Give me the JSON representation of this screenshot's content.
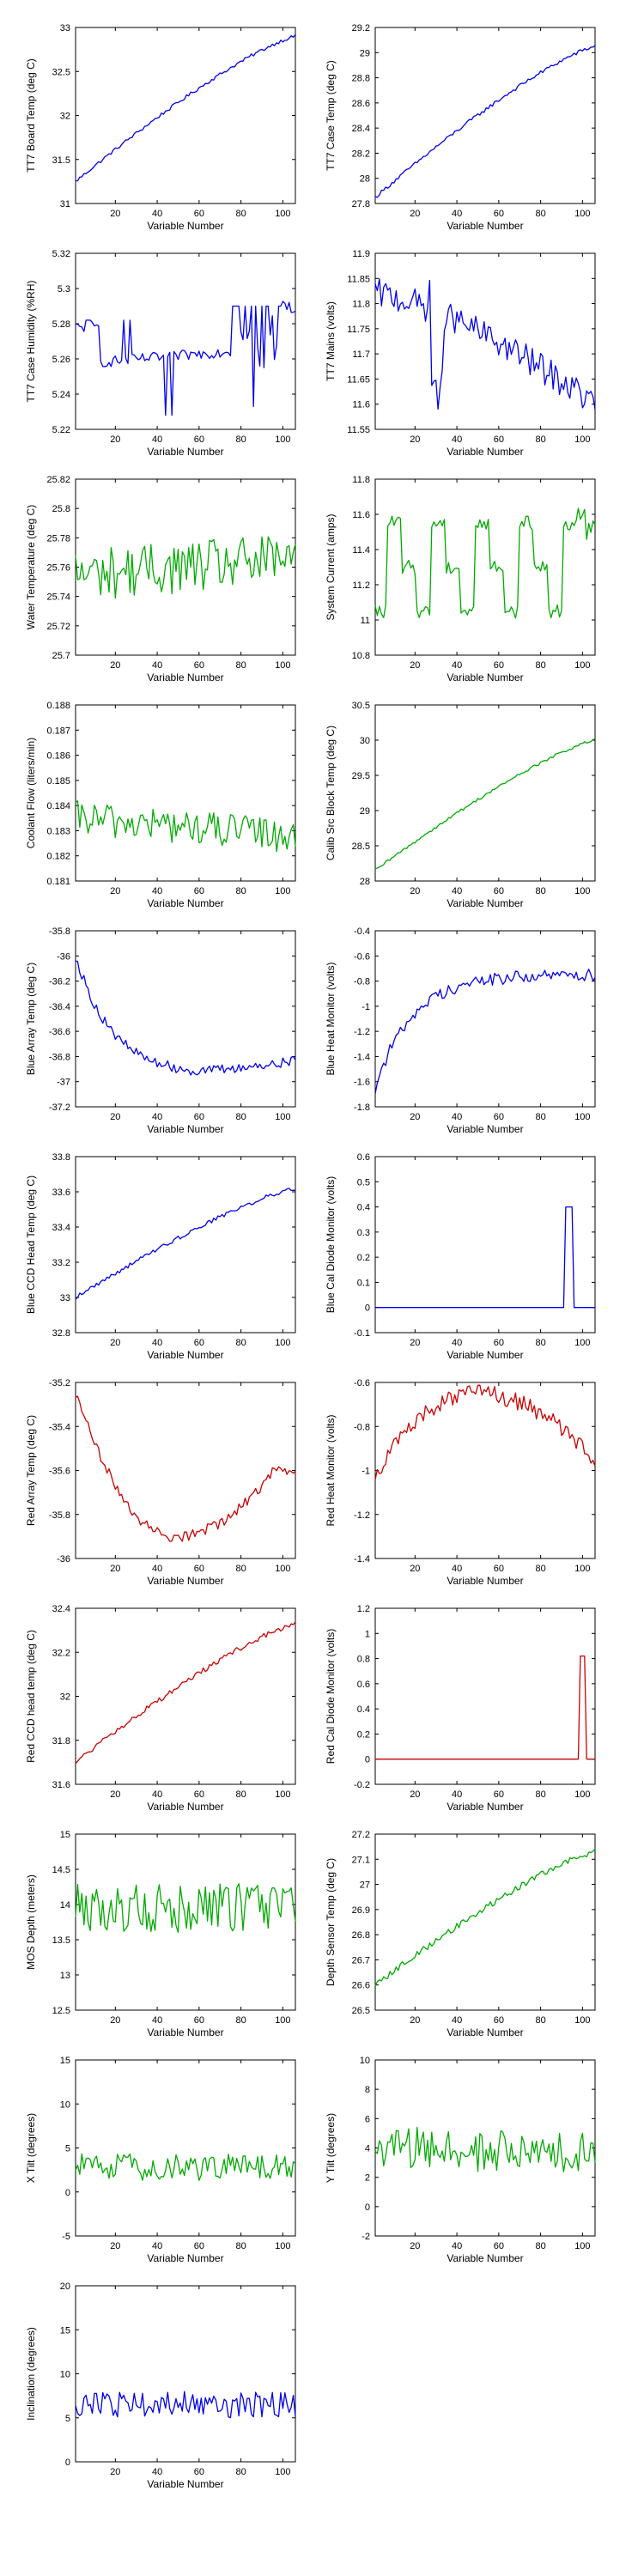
{
  "chart_data": [
    {
      "type": "line",
      "xlabel": "Variable Number",
      "ylabel": "TT7 Board Temp (deg C)",
      "color": "#0000ee",
      "ylim": [
        31,
        33
      ],
      "yticks": [
        "31",
        "31.5",
        "32",
        "32.5",
        "33"
      ],
      "xticks": [
        20,
        40,
        60,
        80,
        100
      ],
      "xlim": [
        1,
        106
      ],
      "shape": "ramp",
      "start": 31.25,
      "end": 32.9,
      "noise": 0.02
    },
    {
      "type": "line",
      "xlabel": "Variable Number",
      "ylabel": "TT7 Case Temp (deg C)",
      "color": "#0000ee",
      "ylim": [
        27.8,
        29.2
      ],
      "yticks": [
        "27.8",
        "28",
        "28.2",
        "28.4",
        "28.6",
        "28.8",
        "29",
        "29.2"
      ],
      "xticks": [
        20,
        40,
        60,
        80,
        100
      ],
      "xlim": [
        1,
        106
      ],
      "shape": "ramp",
      "start": 27.85,
      "end": 29.05,
      "noise": 0.015
    },
    {
      "type": "line",
      "xlabel": "Variable Number",
      "ylabel": "TT7 Case Humidity (%RH)",
      "color": "#0000ee",
      "ylim": [
        5.22,
        5.32
      ],
      "yticks": [
        "5.22",
        "5.24",
        "5.26",
        "5.28",
        "5.3",
        "5.32"
      ],
      "xticks": [
        20,
        40,
        60,
        80,
        100
      ],
      "xlim": [
        1,
        106
      ],
      "shape": "humidity",
      "start": 5.255,
      "end": 5.265,
      "noise": 0.003
    },
    {
      "type": "line",
      "xlabel": "Variable Number",
      "ylabel": "TT7 Mains  (volts)",
      "color": "#0000ee",
      "ylim": [
        11.55,
        11.9
      ],
      "yticks": [
        "11.55",
        "11.6",
        "11.65",
        "11.7",
        "11.75",
        "11.8",
        "11.85",
        "11.9"
      ],
      "xticks": [
        20,
        40,
        60,
        80,
        100
      ],
      "xlim": [
        1,
        106
      ],
      "shape": "mains",
      "start": 11.82,
      "end": 11.6,
      "noise": 0.03
    },
    {
      "type": "line",
      "xlabel": "Variable Number",
      "ylabel": "Water Temperature (deg C)",
      "color": "#00aa00",
      "ylim": [
        25.7,
        25.82
      ],
      "yticks": [
        "25.7",
        "25.72",
        "25.74",
        "25.76",
        "25.78",
        "25.8",
        "25.82"
      ],
      "xticks": [
        20,
        40,
        60,
        80,
        100
      ],
      "xlim": [
        1,
        106
      ],
      "shape": "noise",
      "start": 25.755,
      "end": 25.765,
      "noise": 0.018
    },
    {
      "type": "line",
      "xlabel": "Variable Number",
      "ylabel": "System Current (amps)",
      "color": "#00aa00",
      "ylim": [
        10.8,
        11.8
      ],
      "yticks": [
        "10.8",
        "11",
        "11.2",
        "11.4",
        "11.6",
        "11.8"
      ],
      "xticks": [
        20,
        40,
        60,
        80,
        100
      ],
      "xlim": [
        1,
        106
      ],
      "shape": "current",
      "start": 11.05,
      "end": 11.6,
      "noise": 0.04
    },
    {
      "type": "line",
      "xlabel": "Variable Number",
      "ylabel": "Coolant Flow (liters/min)",
      "color": "#00aa00",
      "ylim": [
        0.181,
        0.188
      ],
      "yticks": [
        "0.181",
        "0.182",
        "0.183",
        "0.184",
        "0.185",
        "0.186",
        "0.187",
        "0.188"
      ],
      "xticks": [
        20,
        40,
        60,
        80,
        100
      ],
      "xlim": [
        1,
        106
      ],
      "shape": "noise",
      "start": 0.1835,
      "end": 0.1828,
      "noise": 0.0007
    },
    {
      "type": "line",
      "xlabel": "Variable Number",
      "ylabel": "Calib Src Block Temp (deg C)",
      "color": "#00aa00",
      "ylim": [
        28,
        30.5
      ],
      "yticks": [
        "28",
        "28.5",
        "29",
        "29.5",
        "30",
        "30.5"
      ],
      "xticks": [
        20,
        40,
        60,
        80,
        100
      ],
      "xlim": [
        1,
        106
      ],
      "shape": "ramp",
      "start": 28.15,
      "end": 30.0,
      "noise": 0.02
    },
    {
      "type": "line",
      "xlabel": "Variable Number",
      "ylabel": "Blue Array Temp (deg C)",
      "color": "#0000ee",
      "ylim": [
        -37.2,
        -35.8
      ],
      "yticks": [
        "-37.2",
        "-37",
        "-36.8",
        "-36.6",
        "-36.4",
        "-36.2",
        "-36",
        "-35.8"
      ],
      "xticks": [
        20,
        40,
        60,
        80,
        100
      ],
      "xlim": [
        1,
        106
      ],
      "shape": "decay",
      "start": -36.0,
      "end": -36.95,
      "noise": 0.04
    },
    {
      "type": "line",
      "xlabel": "Variable Number",
      "ylabel": "Blue Heat Monitor (volts)",
      "color": "#0000ee",
      "ylim": [
        -1.8,
        -0.4
      ],
      "yticks": [
        "-1.8",
        "-1.6",
        "-1.4",
        "-1.2",
        "-1",
        "-0.8",
        "-0.6",
        "-0.4"
      ],
      "xticks": [
        20,
        40,
        60,
        80,
        100
      ],
      "xlim": [
        1,
        106
      ],
      "shape": "rise",
      "start": -1.65,
      "end": -0.75,
      "noise": 0.05
    },
    {
      "type": "line",
      "xlabel": "Variable Number",
      "ylabel": "Blue CCD Head Temp (deg C)",
      "color": "#0000ee",
      "ylim": [
        32.8,
        33.8
      ],
      "yticks": [
        "32.8",
        "33",
        "33.2",
        "33.4",
        "33.6",
        "33.8"
      ],
      "xticks": [
        20,
        40,
        60,
        80,
        100
      ],
      "xlim": [
        1,
        106
      ],
      "shape": "ramp",
      "start": 33.0,
      "end": 33.62,
      "noise": 0.012
    },
    {
      "type": "line",
      "xlabel": "Variable Number",
      "ylabel": "Blue Cal Diode Monitor (volts)",
      "color": "#0000ee",
      "ylim": [
        -0.1,
        0.6
      ],
      "yticks": [
        "-0.1",
        "0",
        "0.1",
        "0.2",
        "0.3",
        "0.4",
        "0.5",
        "0.6"
      ],
      "xticks": [
        20,
        40,
        60,
        80,
        100
      ],
      "xlim": [
        1,
        106
      ],
      "shape": "pulse",
      "start": 0.0,
      "end": 0.4,
      "pulse": [
        92,
        95
      ],
      "noise": 0
    },
    {
      "type": "line",
      "xlabel": "Variable Number",
      "ylabel": "Red Array Temp (deg C)",
      "color": "#cc0000",
      "ylim": [
        -36,
        -35.2
      ],
      "yticks": [
        "-36",
        "-35.8",
        "-35.6",
        "-35.4",
        "-35.2"
      ],
      "xticks": [
        20,
        40,
        60,
        80,
        100
      ],
      "xlim": [
        1,
        106
      ],
      "shape": "dip",
      "start": -35.25,
      "end": -35.6,
      "noise": 0.025
    },
    {
      "type": "line",
      "xlabel": "Variable Number",
      "ylabel": "Red Heat Monitor (volts)",
      "color": "#cc0000",
      "ylim": [
        -1.4,
        -0.6
      ],
      "yticks": [
        "-1.4",
        "-1.2",
        "-1",
        "-0.8",
        "-0.6"
      ],
      "xticks": [
        20,
        40,
        60,
        80,
        100
      ],
      "xlim": [
        1,
        106
      ],
      "shape": "hump",
      "start": -1.2,
      "end": -0.95,
      "noise": 0.04
    },
    {
      "type": "line",
      "xlabel": "Variable Number",
      "ylabel": "Red CCD head temp (deg C)",
      "color": "#cc0000",
      "ylim": [
        31.6,
        32.4
      ],
      "yticks": [
        "31.6",
        "31.8",
        "32",
        "32.2",
        "32.4"
      ],
      "xticks": [
        20,
        40,
        60,
        80,
        100
      ],
      "xlim": [
        1,
        106
      ],
      "shape": "ramp",
      "start": 31.7,
      "end": 32.33,
      "noise": 0.012
    },
    {
      "type": "line",
      "xlabel": "Variable Number",
      "ylabel": "Red Cal Diode Monitor (volts)",
      "color": "#cc0000",
      "ylim": [
        -0.2,
        1.2
      ],
      "yticks": [
        "-0.2",
        "0",
        "0.2",
        "0.4",
        "0.6",
        "0.8",
        "1",
        "1.2"
      ],
      "xticks": [
        20,
        40,
        60,
        80,
        100
      ],
      "xlim": [
        1,
        106
      ],
      "shape": "pulse",
      "start": 0.0,
      "end": 0.82,
      "pulse": [
        99,
        101
      ],
      "noise": 0
    },
    {
      "type": "line",
      "xlabel": "Variable Number",
      "ylabel": "MOS Depth  (meters)",
      "color": "#00aa00",
      "ylim": [
        12.5,
        15
      ],
      "yticks": [
        "12.5",
        "13",
        "13.5",
        "14",
        "14.5",
        "15"
      ],
      "xticks": [
        20,
        40,
        60,
        80,
        100
      ],
      "xlim": [
        1,
        106
      ],
      "shape": "noise",
      "start": 13.95,
      "end": 13.95,
      "noise": 0.35
    },
    {
      "type": "line",
      "xlabel": "Variable Number",
      "ylabel": "Depth Sensor Temp (deg C)",
      "color": "#00aa00",
      "ylim": [
        26.5,
        27.2
      ],
      "yticks": [
        "26.5",
        "26.6",
        "26.7",
        "26.8",
        "26.9",
        "27",
        "27.1",
        "27.2"
      ],
      "xticks": [
        20,
        40,
        60,
        80,
        100
      ],
      "xlim": [
        1,
        106
      ],
      "shape": "ramp",
      "start": 26.6,
      "end": 27.13,
      "noise": 0.012
    },
    {
      "type": "line",
      "xlabel": "Variable Number",
      "ylabel": "X Tilt  (degrees)",
      "color": "#00aa00",
      "ylim": [
        -5,
        15
      ],
      "yticks": [
        "-5",
        "0",
        "5",
        "10",
        "15"
      ],
      "xticks": [
        20,
        40,
        60,
        80,
        100
      ],
      "xlim": [
        1,
        106
      ],
      "shape": "noise",
      "start": 2.8,
      "end": 2.8,
      "noise": 1.6
    },
    {
      "type": "line",
      "xlabel": "Variable Number",
      "ylabel": "Y Tilt  (degrees)",
      "color": "#00aa00",
      "ylim": [
        -2,
        10
      ],
      "yticks": [
        "-2",
        "0",
        "2",
        "4",
        "6",
        "8",
        "10"
      ],
      "xticks": [
        20,
        40,
        60,
        80,
        100
      ],
      "xlim": [
        1,
        106
      ],
      "shape": "noise",
      "start": 4.0,
      "end": 3.5,
      "noise": 1.5
    },
    {
      "type": "line",
      "xlabel": "Variable Number",
      "ylabel": "Inclination  (degrees)",
      "color": "#0000ee",
      "ylim": [
        0,
        20
      ],
      "yticks": [
        "0",
        "5",
        "10",
        "15",
        "20"
      ],
      "xticks": [
        20,
        40,
        60,
        80,
        100
      ],
      "xlim": [
        1,
        106
      ],
      "shape": "noise",
      "start": 6.5,
      "end": 6.5,
      "noise": 1.5
    }
  ]
}
